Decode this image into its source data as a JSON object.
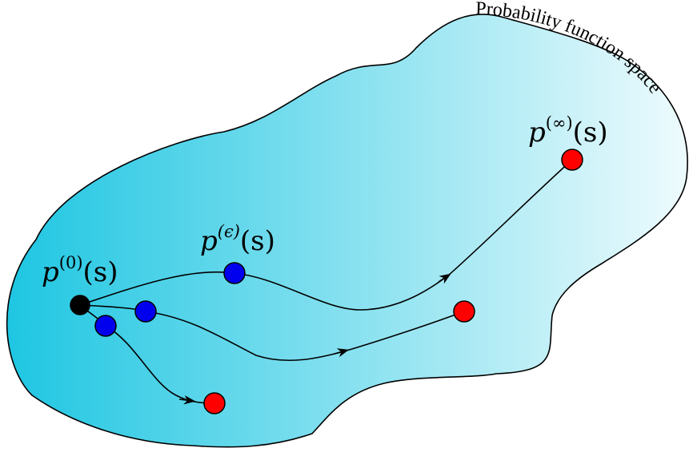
{
  "diagram": {
    "region_label": "Probability function space",
    "label_start": {
      "base": "p",
      "sup": "(0)",
      "arg": "(s)"
    },
    "label_eps": {
      "base": "p",
      "sup": "(ϵ)",
      "arg": "(s)"
    },
    "label_inf": {
      "base": "p",
      "sup": "(∞)",
      "arg": "(s)"
    },
    "colors": {
      "region_dark": "#1ec6e2",
      "region_light": "#eefbfd",
      "start_node": "#000000",
      "intermediate_node": "#0000ee",
      "final_node": "#ff0000",
      "stroke": "#000000"
    }
  }
}
